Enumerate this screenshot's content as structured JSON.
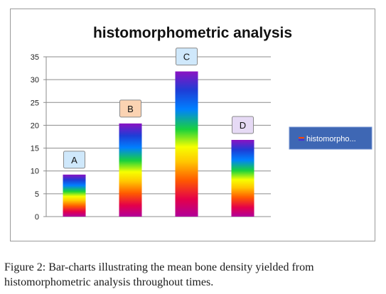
{
  "chart_data": {
    "type": "bar",
    "title": "histomorphometric analysis",
    "categories": [
      "A",
      "B",
      "C",
      "D"
    ],
    "series": [
      {
        "name": "histomorpho...",
        "values": [
          9.2,
          20.4,
          31.8,
          16.8
        ]
      }
    ],
    "y_ticks": [
      "0",
      "5",
      "10",
      "15",
      "20",
      "25",
      "30",
      "35"
    ],
    "ylim": [
      0,
      35
    ],
    "grid": true,
    "legend_position": "right",
    "bar_fill": "vertical rainbow gradient",
    "bar_label_colors": {
      "A": "#cfe8fb",
      "B": "#fbd3b2",
      "C": "#cfe8fb",
      "D": "#e6daf5"
    },
    "legend_background": "#3e67b4"
  },
  "caption": {
    "label": "Figure 2:",
    "text": " Bar-charts illustrating the mean bone density yielded from histomorphometric analysis throughout times."
  }
}
